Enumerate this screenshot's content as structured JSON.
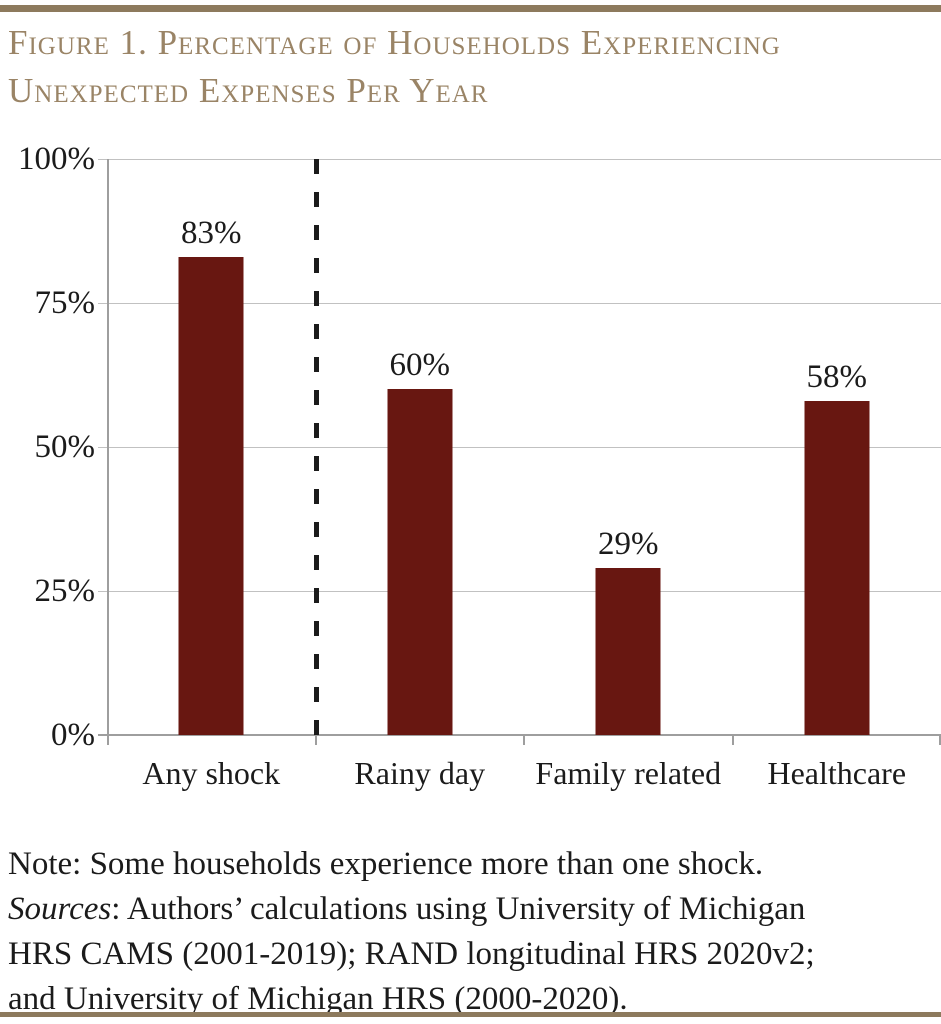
{
  "page": {
    "title_line1": "Figure 1. Percentage of Households Experiencing",
    "title_line2": "Unexpected Expenses Per Year"
  },
  "chart_data": {
    "type": "bar",
    "title": "Figure 1. Percentage of Households Experiencing Unexpected Expenses Per Year",
    "categories": [
      "Any shock",
      "Rainy day",
      "Family related",
      "Healthcare"
    ],
    "values": [
      83,
      60,
      29,
      58
    ],
    "value_labels": [
      "83%",
      "60%",
      "29%",
      "58%"
    ],
    "y_ticks": [
      "100%",
      "75%",
      "50%",
      "25%",
      "0%"
    ],
    "ylim": [
      0,
      100
    ],
    "xlabel": "",
    "ylabel": "",
    "grid": true,
    "legend": false,
    "separator": {
      "type": "dashed-vertical-line",
      "position": "between Any shock and the other categories"
    }
  },
  "notes": {
    "note_line": "Note: Some households experience more than one shock.",
    "sources_label": "Sources",
    "sources_line1_rest": ": Authors’ calculations using University of Michigan",
    "sources_line2": "HRS CAMS (2001-2019); RAND longitudinal HRS 2020v2;",
    "sources_line3": "and University of Michigan HRS (2000-2020)."
  },
  "colors": {
    "bar": "#681711",
    "title_text": "#9a8466",
    "rule": "#8d7a5d",
    "grid_line": "#c1c1c1",
    "axis_line": "#9e9e9e",
    "dash_line": "#1b1b1b",
    "body_text": "#1b1b1b"
  }
}
